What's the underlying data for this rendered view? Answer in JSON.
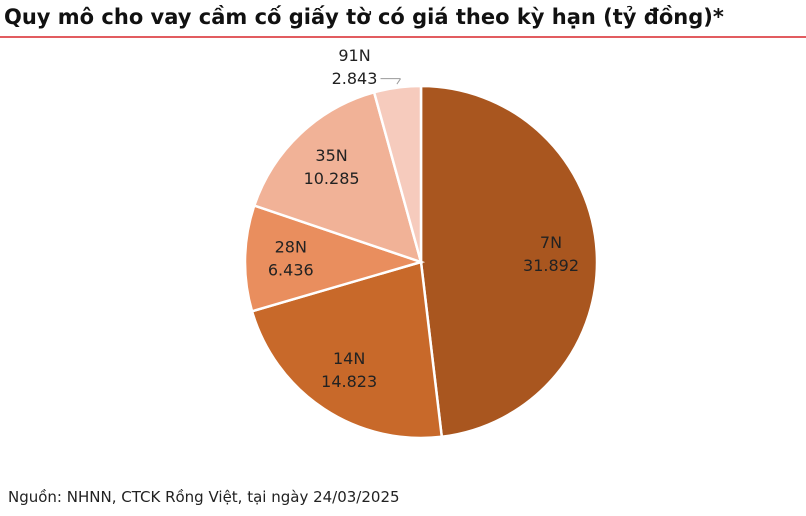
{
  "chart_data": {
    "type": "pie",
    "title": "Quy mô cho vay cầm cố giấy tờ có giá theo kỳ hạn (tỷ đồng)*",
    "categories": [
      "7N",
      "14N",
      "28N",
      "35N",
      "91N"
    ],
    "values": [
      31892,
      14823,
      6436,
      10285,
      2843
    ],
    "value_labels": [
      "31.892",
      "14.823",
      "6.436",
      "10.285",
      "2.843"
    ],
    "colors": [
      "#a9561f",
      "#c8692a",
      "#e98e5e",
      "#f1b297",
      "#f6cbbd"
    ],
    "source": "Nguồn: NHNN, CTCK Rồng Việt, tại ngày 24/03/2025"
  }
}
